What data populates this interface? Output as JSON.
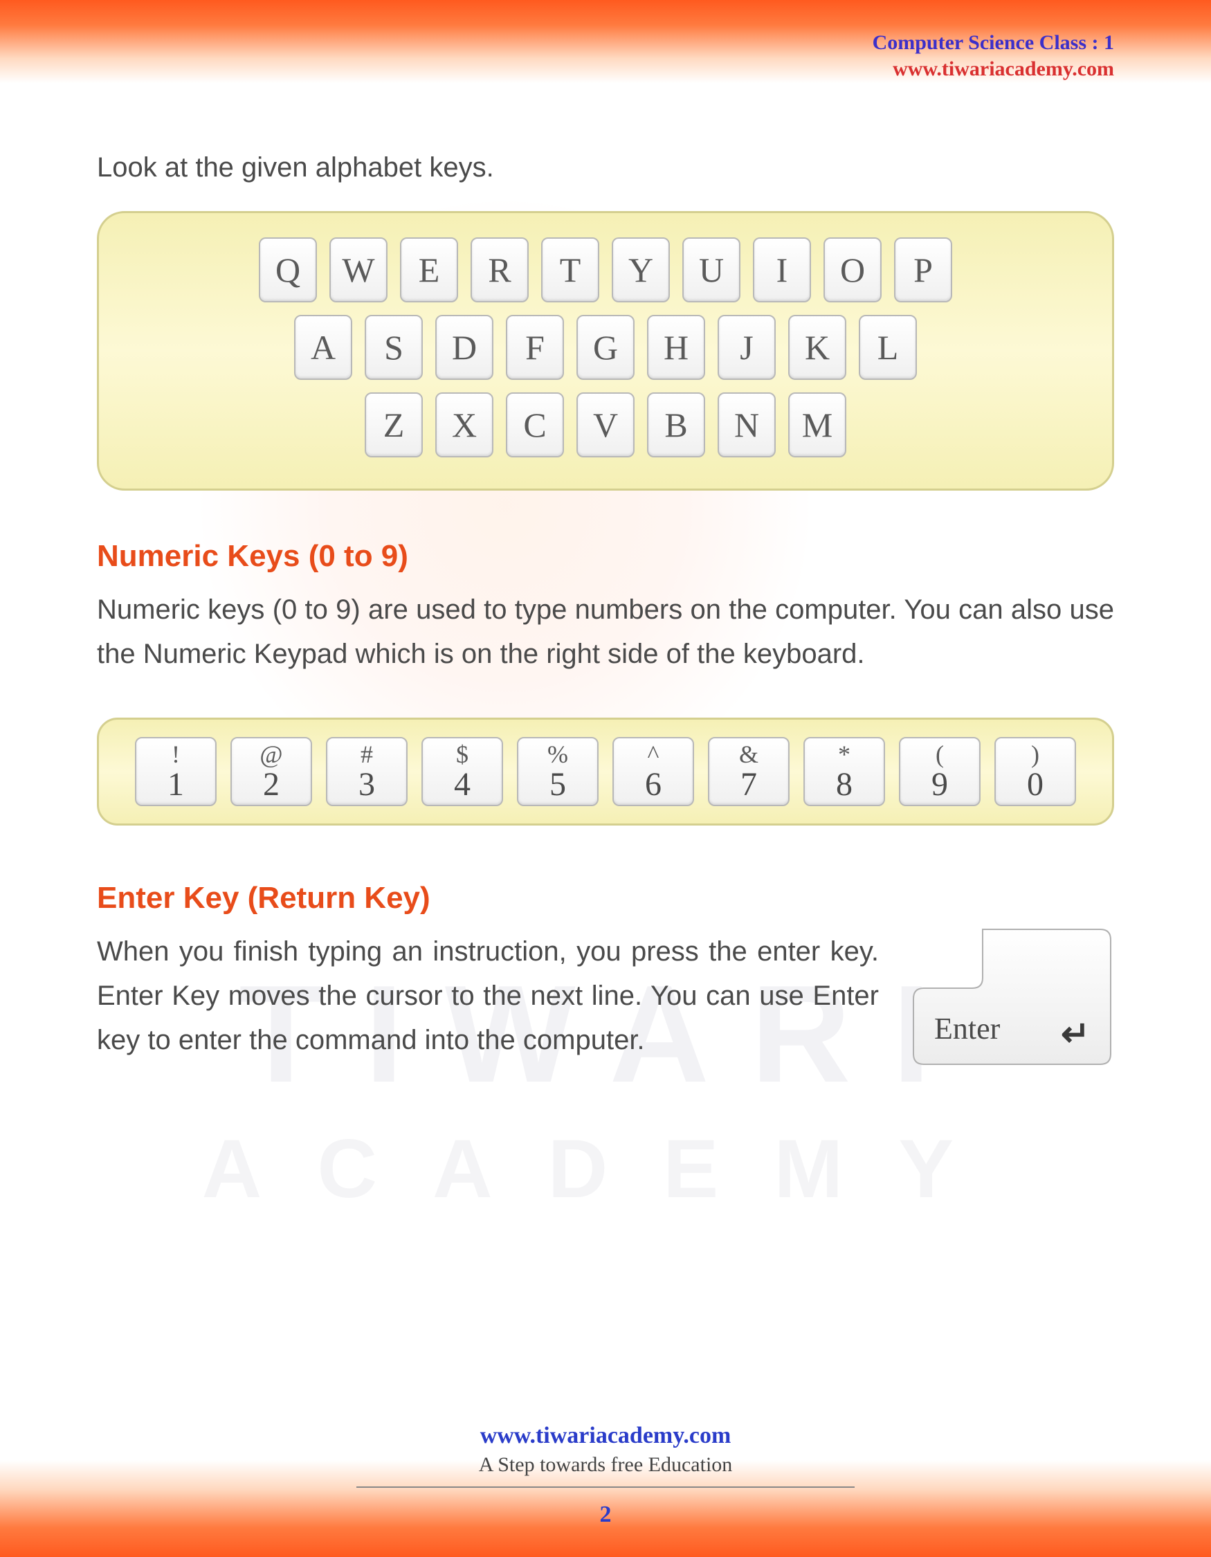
{
  "header": {
    "class_label": "Computer Science Class : 1",
    "url": "www.tiwariacademy.com"
  },
  "colors": {
    "gradient_primary": "#ff5a1f",
    "heading": "#e84c1a",
    "body_text": "#4a4a4a",
    "header_class": "#3c2fc9",
    "header_url": "#d93030",
    "footer_url": "#2a3cc9",
    "key_bg": "#ffffff",
    "key_border": "#b8b8b8",
    "panel_bg": "#f5f0b5",
    "panel_border": "#d4cf8f"
  },
  "typography": {
    "body_fontsize": 40,
    "heading_fontsize": 44,
    "key_fontsize": 50
  },
  "intro": "Look at the given alphabet keys.",
  "alphabet_keyboard": {
    "rows": [
      [
        "Q",
        "W",
        "E",
        "R",
        "T",
        "Y",
        "U",
        "I",
        "O",
        "P"
      ],
      [
        "A",
        "S",
        "D",
        "F",
        "G",
        "H",
        "J",
        "K",
        "L"
      ],
      [
        "Z",
        "X",
        "C",
        "V",
        "B",
        "N",
        "M"
      ]
    ]
  },
  "numeric_section": {
    "heading": "Numeric Keys (0 to 9)",
    "text": "Numeric keys (0 to 9) are used to type numbers on the computer. You can also use the Numeric Keypad which is on the right side of the keyboard.",
    "keys": [
      {
        "symbol": "!",
        "digit": "1"
      },
      {
        "symbol": "@",
        "digit": "2"
      },
      {
        "symbol": "#",
        "digit": "3"
      },
      {
        "symbol": "$",
        "digit": "4"
      },
      {
        "symbol": "%",
        "digit": "5"
      },
      {
        "symbol": "^",
        "digit": "6"
      },
      {
        "symbol": "&",
        "digit": "7"
      },
      {
        "symbol": "*",
        "digit": "8"
      },
      {
        "symbol": "(",
        "digit": "9"
      },
      {
        "symbol": ")",
        "digit": "0"
      }
    ]
  },
  "enter_section": {
    "heading": "Enter Key (Return Key)",
    "text": "When you finish typing an instruction, you press the enter key. Enter Key moves the cursor to the next line. You can use Enter key to enter the command into the computer.",
    "key_label": "Enter",
    "arrow_glyph": "↵"
  },
  "watermark": {
    "line1": "TIWARI",
    "line2": "ACADEMY"
  },
  "footer": {
    "url": "www.tiwariacademy.com",
    "tagline": "A Step towards free Education",
    "page_number": "2"
  }
}
